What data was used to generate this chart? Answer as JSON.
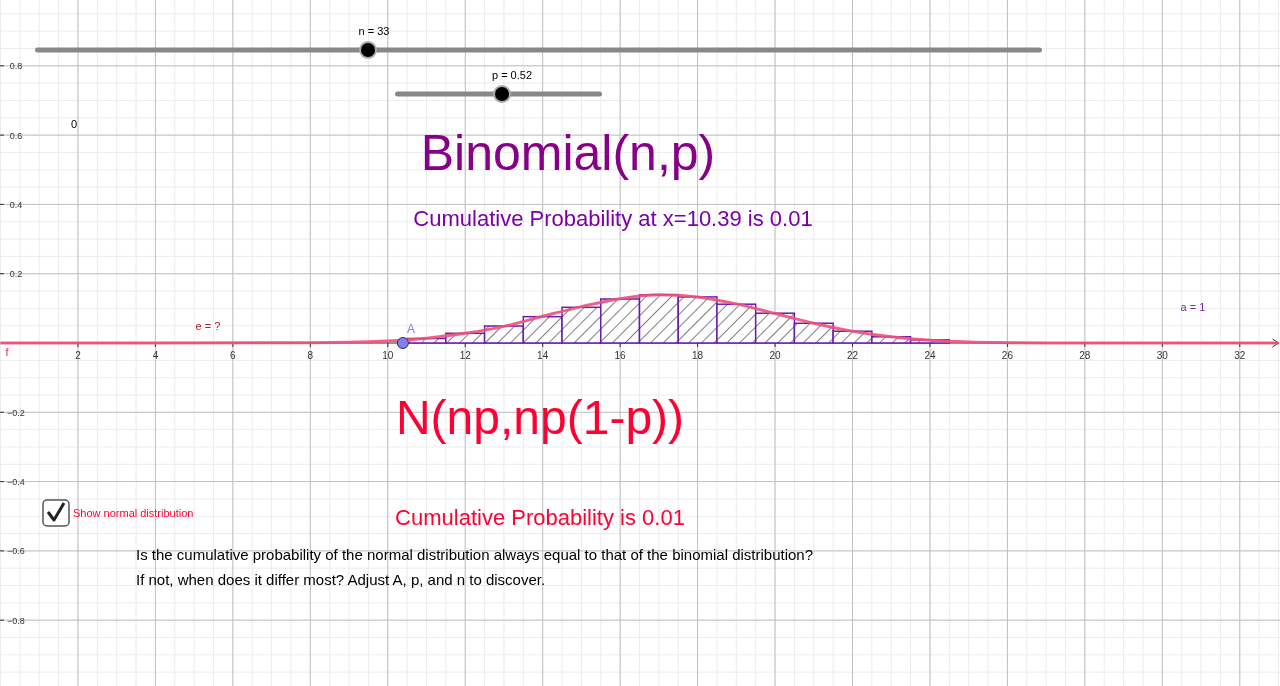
{
  "chart_data": {
    "type": "histogram",
    "title": "Binomial(n,p)",
    "bins": [
      10.5,
      11.5,
      12.5,
      13.5,
      14.5,
      15.5,
      16.5,
      17.5,
      18.5,
      19.5,
      20.5,
      21.5,
      22.5,
      23.5,
      24.5
    ],
    "values": [
      0.013,
      0.028,
      0.049,
      0.076,
      0.103,
      0.127,
      0.139,
      0.133,
      0.112,
      0.086,
      0.057,
      0.034,
      0.018,
      0.009
    ],
    "color": "#6a1bb0",
    "series": [
      {
        "type": "line",
        "color": "#f0507a",
        "x": [
          0,
          8,
          9,
          10,
          11,
          12,
          13,
          14,
          15,
          16,
          17,
          18,
          19,
          20,
          21,
          22,
          23,
          24,
          25,
          26,
          27,
          33
        ],
        "values": [
          0,
          0.001,
          0.002,
          0.006,
          0.014,
          0.028,
          0.048,
          0.077,
          0.105,
          0.128,
          0.139,
          0.133,
          0.113,
          0.085,
          0.057,
          0.034,
          0.018,
          0.008,
          0.003,
          0.001,
          0,
          0
        ]
      },
      {
        "type": "scatter",
        "name": "A",
        "color": "#8080f0",
        "marker": "circle",
        "x": [
          10.39
        ],
        "values": [
          0
        ]
      }
    ],
    "xlim": [
      0,
      33
    ],
    "ylim": [
      -0.99,
      0.99
    ],
    "xticks": [
      2,
      4,
      6,
      8,
      10,
      12,
      14,
      16,
      18,
      20,
      22,
      24,
      26,
      28,
      30,
      32
    ],
    "yticks": [
      {
        "value": -0.8,
        "label": "−0.8"
      },
      {
        "value": -0.6,
        "label": "−0.6"
      },
      {
        "value": -0.4,
        "label": "−0.4"
      },
      {
        "value": -0.2,
        "label": "−0.2"
      },
      0.2,
      0.4,
      0.6,
      0.8
    ],
    "grid": true,
    "annotations": [
      "n = 33",
      "p = 0.52",
      "0",
      "Cumulative Probability at x=10.39 is 0.01",
      "e = ?",
      "a = 1",
      "f",
      "N(np,np(1-p))",
      "Show normal distribution",
      "Cumulative Probability is 0.01",
      "Is the cumulative probability of the normal distribution always equal to that of the binomial distribution?",
      "If not, when does it differ most? Adjust A, p, and n to discover."
    ]
  }
}
